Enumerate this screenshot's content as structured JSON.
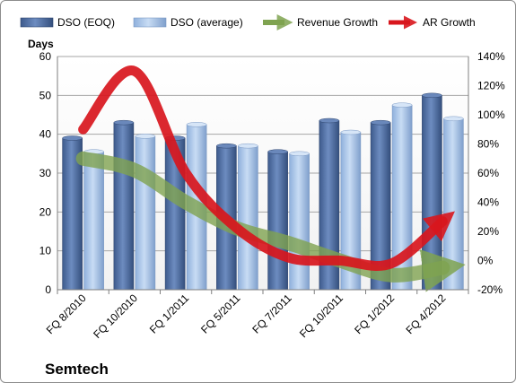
{
  "chart_data": {
    "type": "bar",
    "title": "",
    "company": "Semtech",
    "left_axis_label": "Days",
    "categories": [
      "FQ 8/2010",
      "FQ 10/2010",
      "FQ 1/2011",
      "FQ 5/2011",
      "FQ 7/2011",
      "FQ 10/2011",
      "FQ 1/2012",
      "FQ 4/2012"
    ],
    "left_axis": {
      "min": 0,
      "max": 60,
      "step": 10
    },
    "right_axis": {
      "min": -20,
      "max": 140,
      "step": 20,
      "format": "percent"
    },
    "bar_series": [
      {
        "name": "DSO (EOQ)",
        "color": "#4f6fa3",
        "values": [
          39,
          43,
          39,
          37,
          35.5,
          43.5,
          43,
          50
        ]
      },
      {
        "name": "DSO (average)",
        "color": "#a8c4e6",
        "values": [
          35.5,
          39.5,
          42.5,
          37,
          35,
          40.5,
          47.5,
          44
        ]
      }
    ],
    "line_series": [
      {
        "name": "Revenue Growth",
        "axis": "right",
        "color": "#7fa350",
        "style": "thick-arrow",
        "values": [
          70,
          62,
          40,
          22,
          12,
          0,
          -10,
          -5
        ]
      },
      {
        "name": "AR Growth",
        "axis": "right",
        "color": "#d8161d",
        "style": "thick-arrow",
        "values": [
          90,
          130,
          60,
          22,
          2,
          0,
          -2,
          27
        ]
      }
    ],
    "legend_position": "top",
    "grid": "horizontal"
  }
}
